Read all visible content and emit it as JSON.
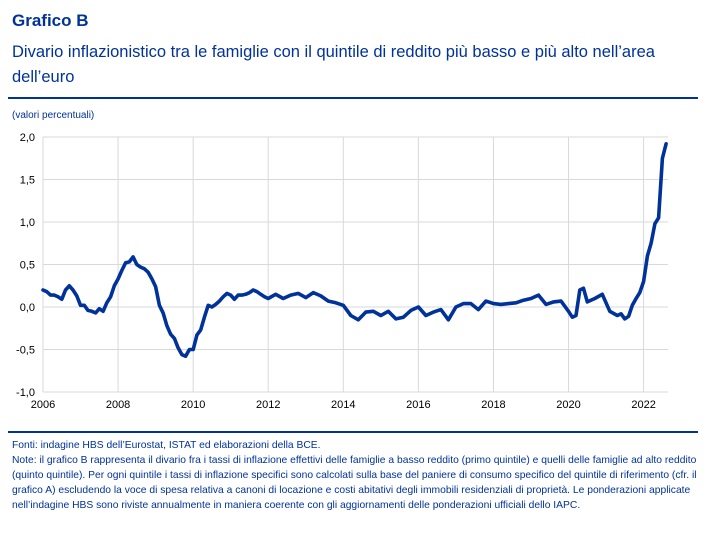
{
  "header": {
    "title": "Grafico B",
    "subtitle": "Divario inflazionistico tra le famiglie con il quintile di reddito più basso e più alto nell’area dell’euro",
    "units": "(valori percentuali)"
  },
  "colors": {
    "line": "#003299",
    "grid": "#d9d9d9",
    "text": "#003299",
    "axis_text": "#000000"
  },
  "footer": {
    "sources": "Fonti: indagine HBS dell’Eurostat, ISTAT ed elaborazioni della BCE.",
    "notes": "Note: il grafico B rappresenta il divario fra i tassi di inflazione effettivi delle famiglie a basso reddito (primo quintile) e quelli delle famiglie ad alto reddito (quinto quintile). Per ogni quintile i tassi di inflazione specifici sono calcolati sulla base del paniere di consumo specifico del quintile di riferimento (cfr. il grafico A) escludendo la voce di spesa relativa a canoni di locazione e costi abitativi degli immobili residenziali di proprietà. Le ponderazioni applicate nell’indagine HBS sono riviste annualmente in maniera coerente con gli aggiornamenti delle ponderazioni ufficiali dello IAPC."
  },
  "chart_data": {
    "type": "line",
    "title": "Divario inflazionistico tra le famiglie con il quintile di reddito più basso e più alto nell’area dell’euro",
    "xlabel": "",
    "ylabel": "(valori percentuali)",
    "xlim": [
      2006,
      2022.65
    ],
    "ylim": [
      -1.0,
      2.0
    ],
    "grid": true,
    "x_ticks": [
      2006,
      2008,
      2010,
      2012,
      2014,
      2016,
      2018,
      2020,
      2022
    ],
    "x_tick_labels": [
      "2006",
      "2008",
      "2010",
      "2012",
      "2014",
      "2016",
      "2018",
      "2020",
      "2022"
    ],
    "y_ticks": [
      -1.0,
      -0.5,
      0.0,
      0.5,
      1.0,
      1.5,
      2.0
    ],
    "y_tick_labels": [
      "-1,0",
      "-0,5",
      "0,0",
      "0,5",
      "1,0",
      "1,5",
      "2,0"
    ],
    "series": [
      {
        "name": "Divario inflazionistico",
        "x": [
          2006.0,
          2006.1,
          2006.2,
          2006.3,
          2006.4,
          2006.5,
          2006.6,
          2006.7,
          2006.8,
          2006.9,
          2007.0,
          2007.1,
          2007.2,
          2007.3,
          2007.4,
          2007.5,
          2007.6,
          2007.7,
          2007.8,
          2007.9,
          2008.0,
          2008.1,
          2008.2,
          2008.3,
          2008.4,
          2008.5,
          2008.6,
          2008.7,
          2008.8,
          2008.9,
          2009.0,
          2009.1,
          2009.2,
          2009.3,
          2009.4,
          2009.5,
          2009.6,
          2009.7,
          2009.8,
          2009.9,
          2010.0,
          2010.1,
          2010.2,
          2010.3,
          2010.4,
          2010.5,
          2010.6,
          2010.7,
          2010.8,
          2010.9,
          2011.0,
          2011.1,
          2011.2,
          2011.3,
          2011.4,
          2011.5,
          2011.6,
          2011.7,
          2011.8,
          2011.9,
          2012.0,
          2012.2,
          2012.4,
          2012.6,
          2012.8,
          2013.0,
          2013.2,
          2013.4,
          2013.6,
          2013.8,
          2014.0,
          2014.2,
          2014.4,
          2014.6,
          2014.8,
          2015.0,
          2015.2,
          2015.4,
          2015.6,
          2015.8,
          2016.0,
          2016.2,
          2016.4,
          2016.6,
          2016.8,
          2017.0,
          2017.2,
          2017.4,
          2017.6,
          2017.8,
          2018.0,
          2018.2,
          2018.4,
          2018.6,
          2018.8,
          2019.0,
          2019.2,
          2019.4,
          2019.6,
          2019.8,
          2020.0,
          2020.1,
          2020.2,
          2020.3,
          2020.4,
          2020.5,
          2020.7,
          2020.9,
          2021.1,
          2021.3,
          2021.4,
          2021.5,
          2021.6,
          2021.7,
          2021.8,
          2021.9,
          2022.0,
          2022.1,
          2022.2,
          2022.3,
          2022.4,
          2022.5,
          2022.6
        ],
        "y": [
          0.2,
          0.18,
          0.14,
          0.14,
          0.12,
          0.09,
          0.2,
          0.25,
          0.2,
          0.13,
          0.02,
          0.02,
          -0.04,
          -0.05,
          -0.07,
          -0.02,
          -0.05,
          0.05,
          0.12,
          0.25,
          0.33,
          0.43,
          0.52,
          0.53,
          0.59,
          0.5,
          0.47,
          0.45,
          0.41,
          0.33,
          0.24,
          0.02,
          -0.07,
          -0.22,
          -0.32,
          -0.37,
          -0.48,
          -0.56,
          -0.58,
          -0.5,
          -0.5,
          -0.33,
          -0.27,
          -0.12,
          0.02,
          0.0,
          0.03,
          0.07,
          0.12,
          0.16,
          0.14,
          0.09,
          0.14,
          0.14,
          0.15,
          0.17,
          0.2,
          0.18,
          0.15,
          0.12,
          0.1,
          0.15,
          0.1,
          0.14,
          0.16,
          0.11,
          0.17,
          0.13,
          0.07,
          0.05,
          0.02,
          -0.1,
          -0.15,
          -0.06,
          -0.05,
          -0.1,
          -0.05,
          -0.14,
          -0.12,
          -0.04,
          0.0,
          -0.1,
          -0.06,
          -0.03,
          -0.15,
          0.0,
          0.04,
          0.04,
          -0.03,
          0.07,
          0.04,
          0.03,
          0.04,
          0.05,
          0.08,
          0.1,
          0.14,
          0.03,
          0.06,
          0.07,
          -0.05,
          -0.12,
          -0.1,
          0.2,
          0.22,
          0.06,
          0.1,
          0.15,
          -0.05,
          -0.1,
          -0.08,
          -0.14,
          -0.11,
          0.02,
          0.1,
          0.17,
          0.3,
          0.6,
          0.75,
          0.98,
          1.05,
          1.75,
          1.92
        ]
      }
    ]
  }
}
